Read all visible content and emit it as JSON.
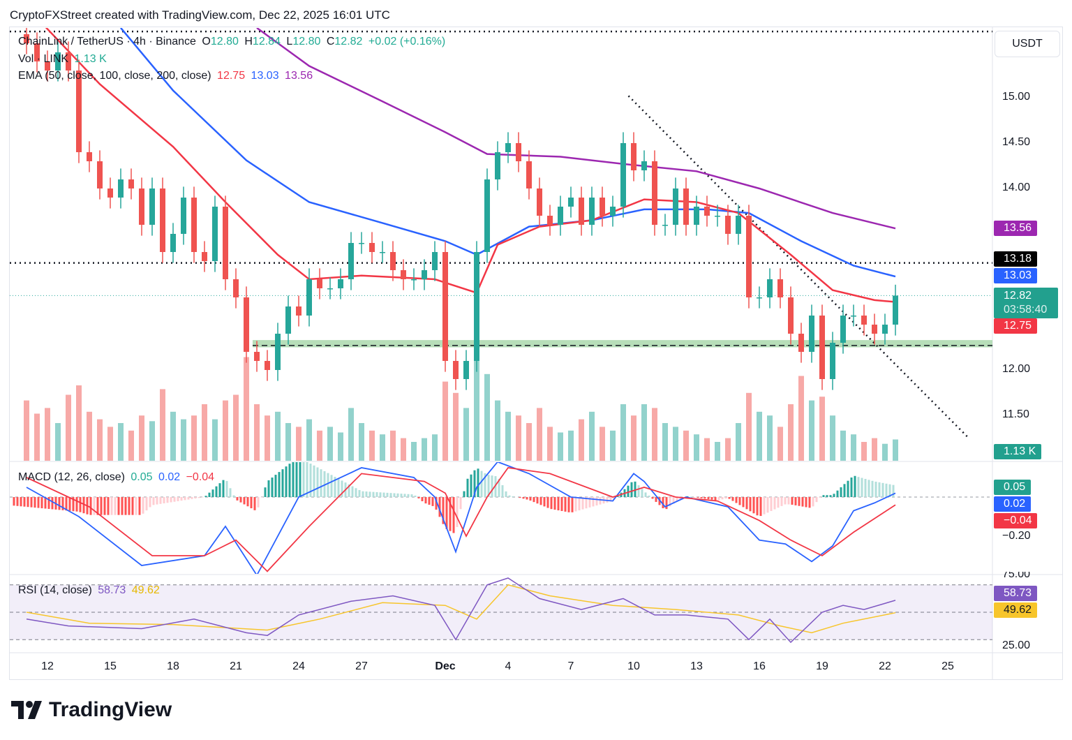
{
  "caption": "CryptoFXStreet created with TradingView.com, Dec 22, 2025 16:01 UTC",
  "footer": {
    "brand": "TradingView",
    "logo_icon": "tradingview-logo-icon"
  },
  "legend": {
    "symbol": "ChainLink / TetherUS · 4h · Binance",
    "o_label": "O",
    "o": "12.80",
    "h_label": "H",
    "h": "12.84",
    "l_label": "L",
    "l": "12.80",
    "c_label": "C",
    "c": "12.82",
    "change": "+0.02 (+0.16%)",
    "vol_label": "Vol · LINK",
    "vol": "1.13 K",
    "ema_label": "EMA (50, close, 100, close, 200, close)",
    "ema50": "12.75",
    "ema100": "13.03",
    "ema200": "13.56",
    "macd_label": "MACD (12, 26, close)",
    "macd_hist": "0.05",
    "macd": "0.02",
    "macd_signal": "−0.04",
    "rsi_label": "RSI (14, close)",
    "rsi": "58.73",
    "rsi_ma": "49.62"
  },
  "price_axis": {
    "currency": "USDT",
    "ticks": [
      "15.00",
      "14.50",
      "14.00",
      "12.00",
      "11.50"
    ],
    "tags": {
      "ema200": "13.56",
      "level": "13.18",
      "ema100": "13.03",
      "last": "12.82",
      "countdown": "03:58:40",
      "ema50": "12.75",
      "volume": "1.13 K"
    }
  },
  "macd_axis": {
    "tags": {
      "hist": "0.05",
      "macd": "0.02",
      "signal": "−0.04"
    },
    "ticks": [
      "−0.20"
    ]
  },
  "rsi_axis": {
    "tags": {
      "rsi": "58.73",
      "ma": "49.62"
    },
    "ticks": [
      "75.00",
      "25.00"
    ]
  },
  "date_axis": {
    "labels": [
      "12",
      "15",
      "18",
      "21",
      "24",
      "27",
      "Dec",
      "4",
      "7",
      "10",
      "13",
      "16",
      "19",
      "22",
      "25"
    ]
  },
  "colors": {
    "up": "#26a69a",
    "down": "#ef5350",
    "ema50": "#f23645",
    "ema100": "#2962ff",
    "ema200": "#9c27b0",
    "rsi": "#7e57c2",
    "rsi_ma": "#f7c52b",
    "support_zone": "#a5d6a7"
  },
  "chart_data": {
    "type": "candlestick",
    "symbol": "LINK/USDT",
    "closes": [
      [
        "2025-11-11T00:00",
        15.6
      ],
      [
        "2025-11-11T12:00",
        15.4
      ],
      [
        "2025-11-12T00:00",
        15.3
      ],
      [
        "2025-11-12T12:00",
        15.5
      ],
      [
        "2025-11-13T00:00",
        15.3
      ],
      [
        "2025-11-13T12:00",
        14.4
      ],
      [
        "2025-11-14T00:00",
        14.3
      ],
      [
        "2025-11-14T12:00",
        14.0
      ],
      [
        "2025-11-15T00:00",
        13.9
      ],
      [
        "2025-11-15T12:00",
        14.1
      ],
      [
        "2025-11-16T00:00",
        14.0
      ],
      [
        "2025-11-16T12:00",
        13.6
      ],
      [
        "2025-11-17T00:00",
        14.0
      ],
      [
        "2025-11-17T12:00",
        13.3
      ],
      [
        "2025-11-18T00:00",
        13.5
      ],
      [
        "2025-11-18T12:00",
        13.9
      ],
      [
        "2025-11-19T00:00",
        13.3
      ],
      [
        "2025-11-19T12:00",
        13.2
      ],
      [
        "2025-11-20T00:00",
        13.8
      ],
      [
        "2025-11-20T12:00",
        13.0
      ],
      [
        "2025-11-21T00:00",
        12.8
      ],
      [
        "2025-11-21T12:00",
        12.2
      ],
      [
        "2025-11-22T00:00",
        12.1
      ],
      [
        "2025-11-22T12:00",
        12.0
      ],
      [
        "2025-11-23T00:00",
        12.4
      ],
      [
        "2025-11-23T12:00",
        12.7
      ],
      [
        "2025-11-24T00:00",
        12.6
      ],
      [
        "2025-11-24T12:00",
        13.0
      ],
      [
        "2025-11-25T00:00",
        12.9
      ],
      [
        "2025-11-25T12:00",
        12.9
      ],
      [
        "2025-11-26T00:00",
        13.0
      ],
      [
        "2025-11-26T12:00",
        13.4
      ],
      [
        "2025-11-27T00:00",
        13.4
      ],
      [
        "2025-11-27T12:00",
        13.3
      ],
      [
        "2025-11-28T00:00",
        13.3
      ],
      [
        "2025-11-28T12:00",
        13.1
      ],
      [
        "2025-11-29T00:00",
        13.0
      ],
      [
        "2025-11-29T12:00",
        13.0
      ],
      [
        "2025-11-30T00:00",
        13.1
      ],
      [
        "2025-11-30T12:00",
        13.3
      ],
      [
        "2025-12-01T00:00",
        12.1
      ],
      [
        "2025-12-01T12:00",
        11.9
      ],
      [
        "2025-12-02T00:00",
        12.1
      ],
      [
        "2025-12-02T12:00",
        13.3
      ],
      [
        "2025-12-03T00:00",
        14.1
      ],
      [
        "2025-12-03T12:00",
        14.4
      ],
      [
        "2025-12-04T00:00",
        14.5
      ],
      [
        "2025-12-04T12:00",
        14.3
      ],
      [
        "2025-12-05T00:00",
        14.0
      ],
      [
        "2025-12-05T12:00",
        13.7
      ],
      [
        "2025-12-06T00:00",
        13.6
      ],
      [
        "2025-12-06T12:00",
        13.8
      ],
      [
        "2025-12-07T00:00",
        13.9
      ],
      [
        "2025-12-07T12:00",
        13.6
      ],
      [
        "2025-12-08T00:00",
        13.9
      ],
      [
        "2025-12-08T12:00",
        13.7
      ],
      [
        "2025-12-09T00:00",
        13.8
      ],
      [
        "2025-12-09T12:00",
        14.5
      ],
      [
        "2025-12-10T00:00",
        14.2
      ],
      [
        "2025-12-10T12:00",
        14.3
      ],
      [
        "2025-12-11T00:00",
        13.6
      ],
      [
        "2025-12-11T12:00",
        13.6
      ],
      [
        "2025-12-12T00:00",
        14.0
      ],
      [
        "2025-12-12T12:00",
        13.6
      ],
      [
        "2025-12-13T00:00",
        13.8
      ],
      [
        "2025-12-13T12:00",
        13.7
      ],
      [
        "2025-12-14T00:00",
        13.7
      ],
      [
        "2025-12-14T12:00",
        13.5
      ],
      [
        "2025-12-15T00:00",
        13.7
      ],
      [
        "2025-12-15T12:00",
        12.8
      ],
      [
        "2025-12-16T00:00",
        12.8
      ],
      [
        "2025-12-16T12:00",
        13.0
      ],
      [
        "2025-12-17T00:00",
        12.8
      ],
      [
        "2025-12-17T12:00",
        12.4
      ],
      [
        "2025-12-18T00:00",
        12.2
      ],
      [
        "2025-12-18T12:00",
        12.6
      ],
      [
        "2025-12-19T00:00",
        11.9
      ],
      [
        "2025-12-19T12:00",
        12.3
      ],
      [
        "2025-12-20T00:00",
        12.6
      ],
      [
        "2025-12-20T12:00",
        12.6
      ],
      [
        "2025-12-21T00:00",
        12.5
      ],
      [
        "2025-12-21T12:00",
        12.4
      ],
      [
        "2025-12-22T00:00",
        12.5
      ],
      [
        "2025-12-22T12:00",
        12.82
      ]
    ],
    "volume_k": [
      3.2,
      2.5,
      2.8,
      2.0,
      3.5,
      4.0,
      2.6,
      2.2,
      1.8,
      2.0,
      1.6,
      2.4,
      2.1,
      3.8,
      2.6,
      2.2,
      2.4,
      3.0,
      2.2,
      3.2,
      3.5,
      5.5,
      3.0,
      2.4,
      2.6,
      2.0,
      1.8,
      2.2,
      1.6,
      1.8,
      1.5,
      2.8,
      2.0,
      1.6,
      1.4,
      1.6,
      1.2,
      1.0,
      1.2,
      1.4,
      4.2,
      3.6,
      2.8,
      5.5,
      4.6,
      3.2,
      2.6,
      2.4,
      2.0,
      2.8,
      1.8,
      1.5,
      1.6,
      2.2,
      2.6,
      1.8,
      1.6,
      3.0,
      2.4,
      3.0,
      2.8,
      2.0,
      1.8,
      1.6,
      1.4,
      1.2,
      1.0,
      1.2,
      2.0,
      3.6,
      2.6,
      2.4,
      1.8,
      3.0,
      4.5,
      3.2,
      3.4,
      2.4,
      1.6,
      1.4,
      1.0,
      1.2,
      0.9,
      1.13
    ],
    "ema50": [
      [
        "2025-11-11T00:00",
        16.0
      ],
      [
        "2025-11-14T12:00",
        15.15
      ],
      [
        "2025-11-18T00:00",
        14.46
      ],
      [
        "2025-11-20T12:00",
        13.85
      ],
      [
        "2025-11-23T00:00",
        13.27
      ],
      [
        "2025-11-24T12:00",
        13.0
      ],
      [
        "2025-11-27T00:00",
        13.04
      ],
      [
        "2025-11-30T12:00",
        13.0
      ],
      [
        "2025-12-02T12:00",
        12.85
      ],
      [
        "2025-12-03T12:00",
        13.38
      ],
      [
        "2025-12-05T12:00",
        13.58
      ],
      [
        "2025-12-08T00:00",
        13.65
      ],
      [
        "2025-12-10T12:00",
        13.88
      ],
      [
        "2025-12-13T00:00",
        13.85
      ],
      [
        "2025-12-15T00:00",
        13.73
      ],
      [
        "2025-12-17T12:00",
        13.27
      ],
      [
        "2025-12-19T12:00",
        12.88
      ],
      [
        "2025-12-21T12:00",
        12.77
      ],
      [
        "2025-12-22T12:00",
        12.75
      ]
    ],
    "ema100": [
      [
        "2025-11-15T12:00",
        15.77
      ],
      [
        "2025-11-18T00:00",
        15.08
      ],
      [
        "2025-11-21T12:00",
        14.31
      ],
      [
        "2025-11-24T12:00",
        13.85
      ],
      [
        "2025-11-28T00:00",
        13.62
      ],
      [
        "2025-12-01T00:00",
        13.42
      ],
      [
        "2025-12-02T12:00",
        13.27
      ],
      [
        "2025-12-05T00:00",
        13.58
      ],
      [
        "2025-12-08T00:00",
        13.65
      ],
      [
        "2025-12-10T12:00",
        13.77
      ],
      [
        "2025-12-13T12:00",
        13.77
      ],
      [
        "2025-12-15T12:00",
        13.73
      ],
      [
        "2025-12-18T00:00",
        13.42
      ],
      [
        "2025-12-20T12:00",
        13.15
      ],
      [
        "2025-12-22T12:00",
        13.03
      ]
    ],
    "ema200": [
      [
        "2025-11-22T00:00",
        15.77
      ],
      [
        "2025-11-24T12:00",
        15.35
      ],
      [
        "2025-11-28T00:00",
        14.96
      ],
      [
        "2025-12-01T00:00",
        14.62
      ],
      [
        "2025-12-03T00:00",
        14.38
      ],
      [
        "2025-12-06T12:00",
        14.35
      ],
      [
        "2025-12-09T12:00",
        14.27
      ],
      [
        "2025-12-13T00:00",
        14.19
      ],
      [
        "2025-12-16T00:00",
        14.0
      ],
      [
        "2025-12-19T12:00",
        13.73
      ],
      [
        "2025-12-22T12:00",
        13.56
      ]
    ],
    "horizontal_levels": [
      15.73,
      13.18
    ],
    "support_zone": [
      12.25,
      12.33
    ],
    "support_line": 12.27,
    "trendline": [
      [
        "2025-12-09T18:00",
        15.02
      ],
      [
        "2025-12-26T00:00",
        11.25
      ]
    ],
    "macd": [
      [
        "2025-11-11T00:00",
        0.05
      ],
      [
        "2025-11-13T12:00",
        -0.1
      ],
      [
        "2025-11-16T12:00",
        -0.35
      ],
      [
        "2025-11-19T12:00",
        -0.3
      ],
      [
        "2025-11-20T12:00",
        -0.15
      ],
      [
        "2025-11-22T00:00",
        -0.4
      ],
      [
        "2025-11-24T00:00",
        0.0
      ],
      [
        "2025-11-27T00:00",
        0.15
      ],
      [
        "2025-11-29T12:00",
        0.1
      ],
      [
        "2025-11-30T12:00",
        0.0
      ],
      [
        "2025-12-01T12:00",
        -0.28
      ],
      [
        "2025-12-02T12:00",
        0.05
      ],
      [
        "2025-12-03T12:00",
        0.18
      ],
      [
        "2025-12-05T00:00",
        0.12
      ],
      [
        "2025-12-07T00:00",
        0.0
      ],
      [
        "2025-12-09T00:00",
        -0.02
      ],
      [
        "2025-12-10T00:00",
        0.12
      ],
      [
        "2025-12-10T12:00",
        0.08
      ],
      [
        "2025-12-11T12:00",
        -0.05
      ],
      [
        "2025-12-12T12:00",
        0.0
      ],
      [
        "2025-12-14T12:00",
        -0.05
      ],
      [
        "2025-12-16T00:00",
        -0.22
      ],
      [
        "2025-12-17T06:00",
        -0.24
      ],
      [
        "2025-12-18T12:00",
        -0.33
      ],
      [
        "2025-12-19T12:00",
        -0.25
      ],
      [
        "2025-12-20T12:00",
        -0.07
      ],
      [
        "2025-12-21T12:00",
        -0.03
      ],
      [
        "2025-12-22T12:00",
        0.02
      ]
    ],
    "macd_signal": [
      [
        "2025-11-11T00:00",
        0.1
      ],
      [
        "2025-11-14T00:00",
        -0.05
      ],
      [
        "2025-11-17T00:00",
        -0.3
      ],
      [
        "2025-11-19T12:00",
        -0.3
      ],
      [
        "2025-11-21T00:00",
        -0.22
      ],
      [
        "2025-11-22T12:00",
        -0.38
      ],
      [
        "2025-11-24T12:00",
        -0.15
      ],
      [
        "2025-11-27T00:00",
        0.12
      ],
      [
        "2025-11-30T00:00",
        0.08
      ],
      [
        "2025-12-01T00:00",
        0.02
      ],
      [
        "2025-12-02T00:00",
        -0.2
      ],
      [
        "2025-12-03T00:00",
        0.0
      ],
      [
        "2025-12-04T00:00",
        0.15
      ],
      [
        "2025-12-06T00:00",
        0.12
      ],
      [
        "2025-12-09T00:00",
        0.0
      ],
      [
        "2025-12-10T12:00",
        0.05
      ],
      [
        "2025-12-12T00:00",
        0.0
      ],
      [
        "2025-12-14T00:00",
        -0.02
      ],
      [
        "2025-12-16T00:00",
        -0.12
      ],
      [
        "2025-12-17T12:00",
        -0.22
      ],
      [
        "2025-12-19T00:00",
        -0.3
      ],
      [
        "2025-12-20T12:00",
        -0.18
      ],
      [
        "2025-12-22T12:00",
        -0.04
      ]
    ],
    "rsi": [
      [
        "2025-11-11T00:00",
        45
      ],
      [
        "2025-11-13T00:00",
        40
      ],
      [
        "2025-11-16T12:00",
        38
      ],
      [
        "2025-11-19T00:00",
        45
      ],
      [
        "2025-11-21T12:00",
        35
      ],
      [
        "2025-11-22T12:00",
        33
      ],
      [
        "2025-11-24T00:00",
        48
      ],
      [
        "2025-11-26T12:00",
        58
      ],
      [
        "2025-11-28T12:00",
        62
      ],
      [
        "2025-11-30T12:00",
        55
      ],
      [
        "2025-12-01T12:00",
        30
      ],
      [
        "2025-12-03T00:00",
        70
      ],
      [
        "2025-12-04T00:00",
        75
      ],
      [
        "2025-12-05T12:00",
        60
      ],
      [
        "2025-12-07T12:00",
        52
      ],
      [
        "2025-12-09T12:00",
        60
      ],
      [
        "2025-12-11T00:00",
        48
      ],
      [
        "2025-12-12T12:00",
        48
      ],
      [
        "2025-12-14T12:00",
        45
      ],
      [
        "2025-12-15T12:00",
        30
      ],
      [
        "2025-12-16T12:00",
        45
      ],
      [
        "2025-12-17T12:00",
        28
      ],
      [
        "2025-12-19T00:00",
        50
      ],
      [
        "2025-12-20T00:00",
        55
      ],
      [
        "2025-12-21T00:00",
        52
      ],
      [
        "2025-12-22T12:00",
        58.73
      ]
    ],
    "rsi_ma": [
      [
        "2025-11-11T00:00",
        50
      ],
      [
        "2025-11-14T00:00",
        42
      ],
      [
        "2025-11-18T00:00",
        41
      ],
      [
        "2025-11-22T12:00",
        37
      ],
      [
        "2025-11-25T00:00",
        45
      ],
      [
        "2025-11-28T00:00",
        57
      ],
      [
        "2025-12-01T00:00",
        55
      ],
      [
        "2025-12-02T12:00",
        45
      ],
      [
        "2025-12-04T00:00",
        70
      ],
      [
        "2025-12-06T00:00",
        62
      ],
      [
        "2025-12-09T00:00",
        55
      ],
      [
        "2025-12-12T00:00",
        52
      ],
      [
        "2025-12-15T00:00",
        48
      ],
      [
        "2025-12-17T00:00",
        40
      ],
      [
        "2025-12-18T12:00",
        35
      ],
      [
        "2025-12-20T00:00",
        42
      ],
      [
        "2025-12-22T12:00",
        49.62
      ]
    ],
    "rsi_bands": [
      70,
      50,
      30
    ],
    "price_range": [
      11.2,
      15.8
    ],
    "macd_range": [
      -0.38,
      0.18
    ],
    "rsi_range": [
      20,
      80
    ]
  }
}
